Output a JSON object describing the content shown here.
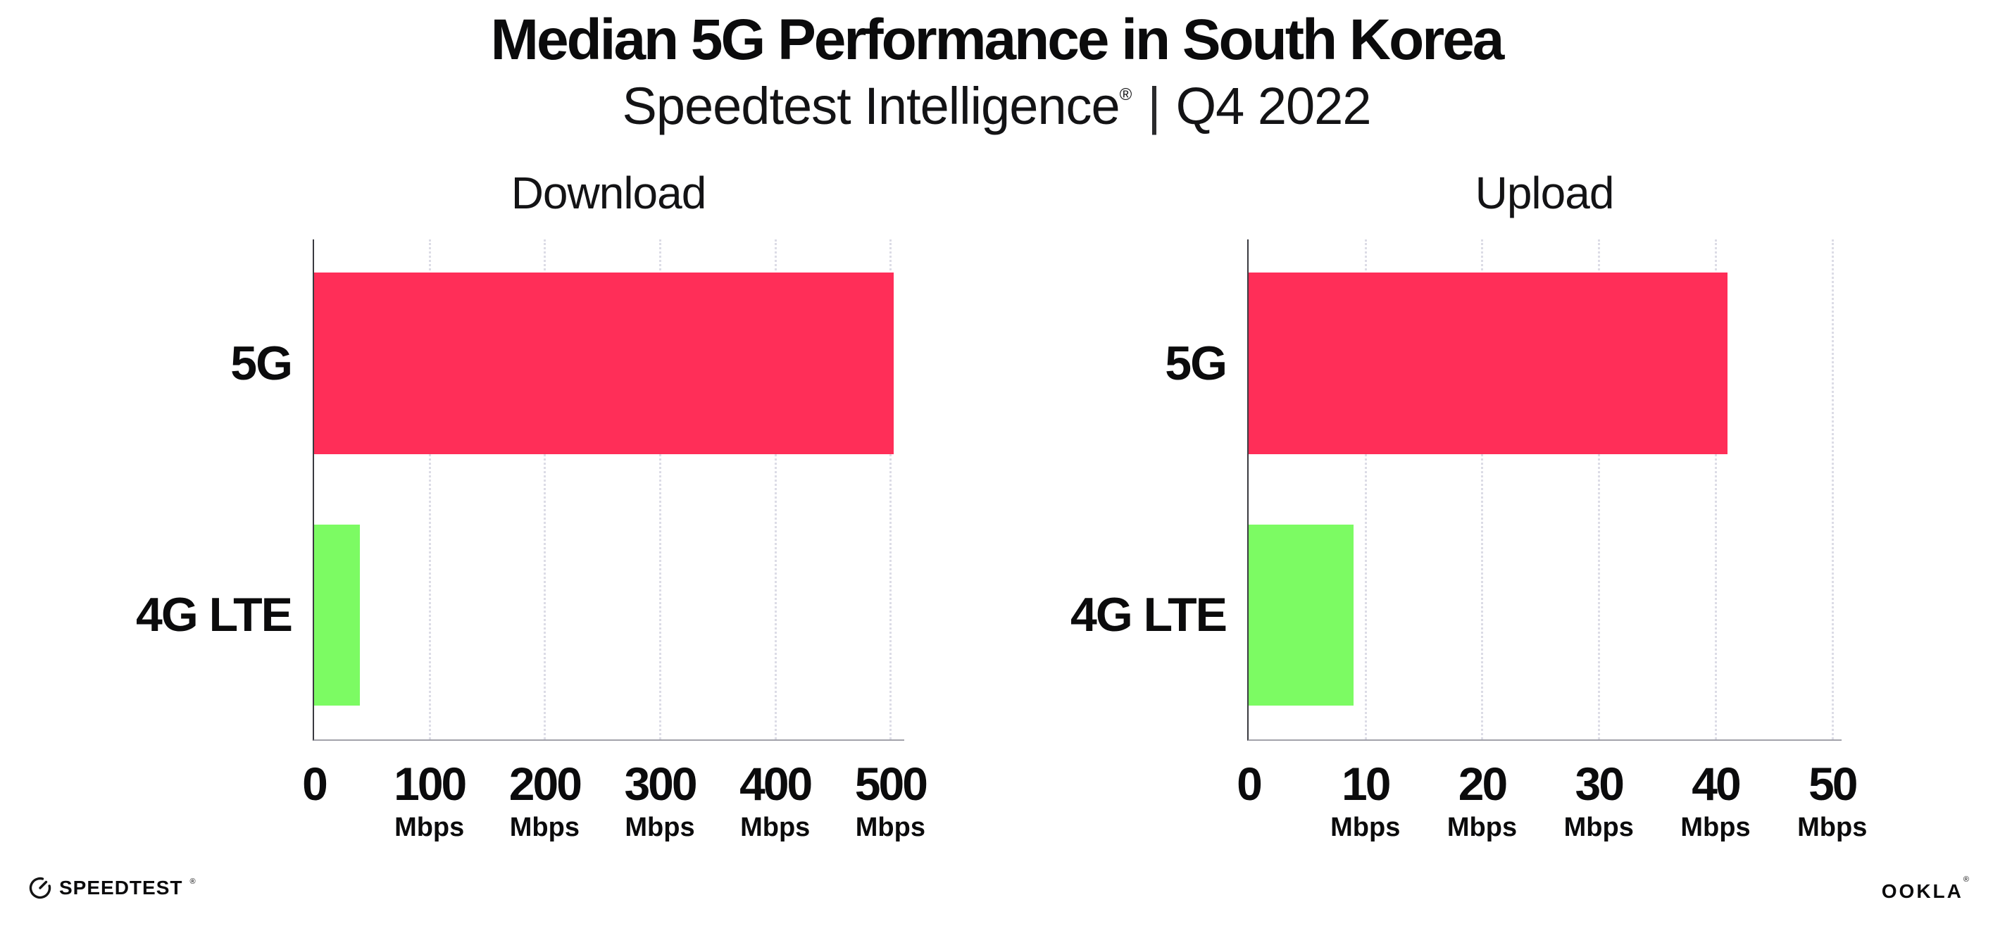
{
  "header": {
    "title": "Median 5G Performance in South Korea",
    "subtitle": {
      "brand": "Speedtest Intelligence",
      "registered": "®",
      "separator": "|",
      "period": "Q4 2022"
    }
  },
  "chart_data": [
    {
      "type": "bar",
      "orientation": "horizontal",
      "title": "Download",
      "categories": [
        "5G",
        "4G LTE"
      ],
      "values": [
        503,
        40
      ],
      "unit": "Mbps",
      "xlim": [
        0,
        512
      ],
      "xticks": [
        0,
        100,
        200,
        300,
        400,
        500
      ],
      "bar_colors": [
        "#FF2E58",
        "#7CFB63"
      ],
      "grid": "dotted vertical gridlines at each labeled tick",
      "legend": "none",
      "xlabel": "",
      "ylabel": ""
    },
    {
      "type": "bar",
      "orientation": "horizontal",
      "title": "Upload",
      "categories": [
        "5G",
        "4G LTE"
      ],
      "values": [
        41,
        9
      ],
      "unit": "Mbps",
      "xlim": [
        0,
        50.8
      ],
      "xticks": [
        0,
        10,
        20,
        30,
        40,
        50
      ],
      "bar_colors": [
        "#FF2E58",
        "#7CFB63"
      ],
      "grid": "dotted vertical gridlines at each labeled tick",
      "legend": "none",
      "xlabel": "",
      "ylabel": ""
    }
  ],
  "footer": {
    "speedtest_wordmark": "SPEEDTEST",
    "speedtest_mark": "®",
    "ookla_wordmark": "OOKLA",
    "ookla_mark": "®"
  },
  "colors": {
    "bar_5g": "#FF2E58",
    "bar_4g_lte": "#7CFB63",
    "gridline": "#DCDCE6",
    "y_axis": "#3A3A40",
    "x_axis": "#A2A2AA",
    "text": "#0B0B0C"
  }
}
